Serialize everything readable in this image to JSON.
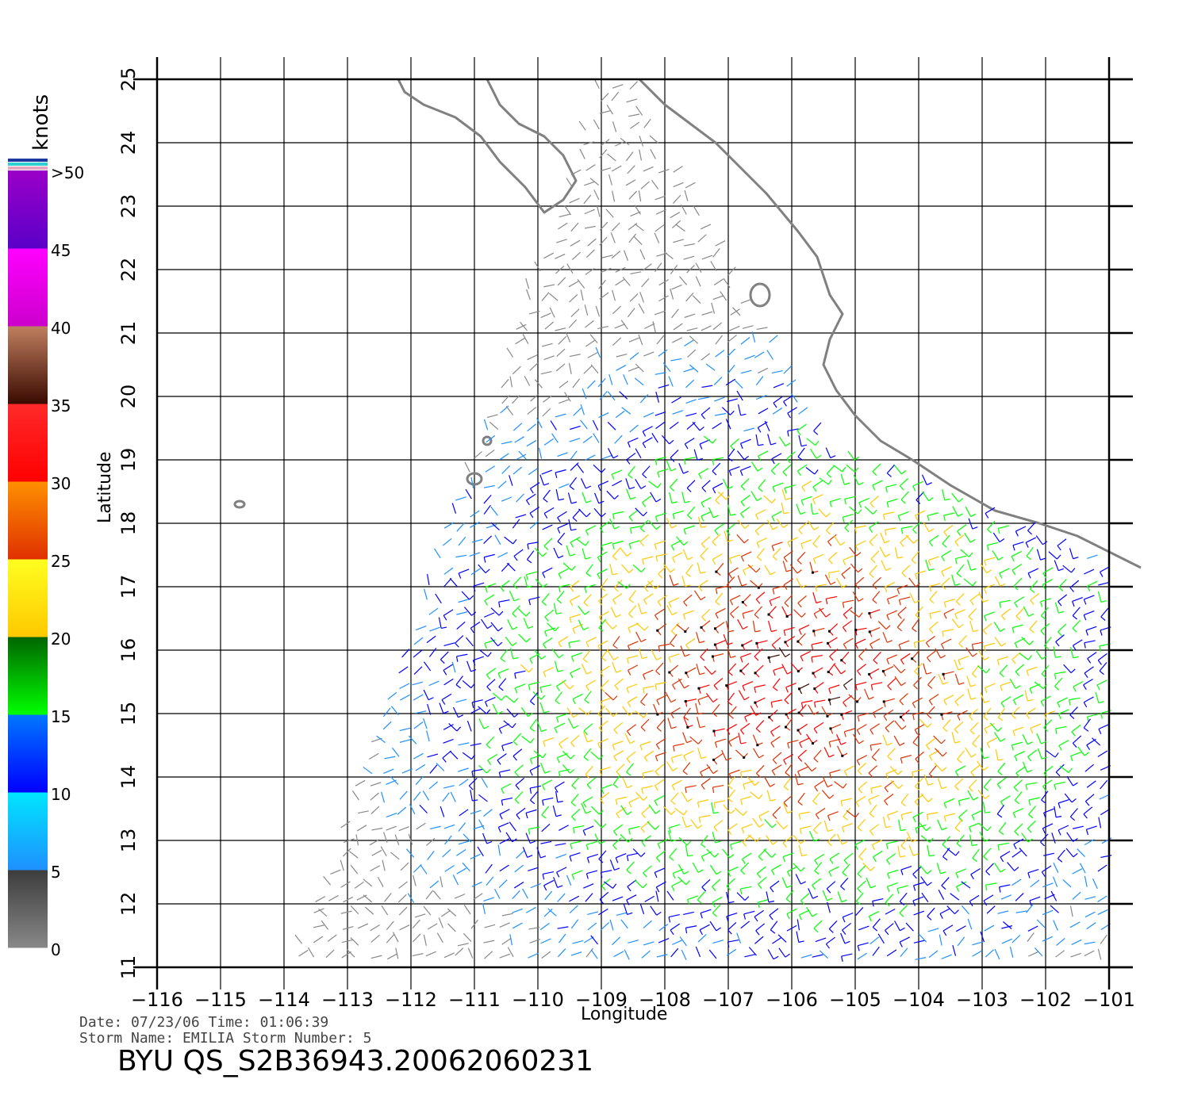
{
  "map": {
    "xlabel": "Longitude",
    "ylabel": "Latitude",
    "lon_range": [
      -116,
      -100.5
    ],
    "lat_range": [
      11,
      25
    ],
    "lon_ticks": [
      "−116",
      "−115",
      "−114",
      "−113",
      "−112",
      "−111",
      "−110",
      "−109",
      "−108",
      "−107",
      "−106",
      "−105",
      "−104",
      "−103",
      "−102",
      "−101"
    ],
    "lat_ticks": [
      "11",
      "12",
      "13",
      "14",
      "15",
      "16",
      "17",
      "18",
      "19",
      "20",
      "21",
      "22",
      "23",
      "24",
      "25"
    ],
    "coast_color": "#808080"
  },
  "colorbar": {
    "unit": "knots",
    "labels": [
      "0",
      "5",
      "10",
      "15",
      "20",
      "25",
      "30",
      "35",
      "40",
      "45",
      ">50"
    ],
    "ranges": [
      {
        "from": 0,
        "to": 5,
        "top": "#3c3c3c",
        "bottom": "#888888"
      },
      {
        "from": 5,
        "to": 10,
        "top": "#00e6ff",
        "bottom": "#1e90ff"
      },
      {
        "from": 10,
        "to": 15,
        "top": "#0078ff",
        "bottom": "#0000ff"
      },
      {
        "from": 15,
        "to": 20,
        "top": "#006400",
        "bottom": "#00ff00"
      },
      {
        "from": 20,
        "to": 25,
        "top": "#ffff20",
        "bottom": "#ffc800"
      },
      {
        "from": 25,
        "to": 30,
        "top": "#ff9000",
        "bottom": "#e03000"
      },
      {
        "from": 30,
        "to": 35,
        "top": "#ff2a2a",
        "bottom": "#ff0000"
      },
      {
        "from": 35,
        "to": 40,
        "top": "#c08060",
        "bottom": "#3a0a00"
      },
      {
        "from": 40,
        "to": 45,
        "top": "#ff00ff",
        "bottom": "#cc00cc"
      },
      {
        "from": 45,
        "to": 50,
        "top": "#9a00c8",
        "bottom": "#5a00c8"
      }
    ]
  },
  "footer": {
    "meta_line1": "Date: 07/23/06   Time: 01:06:39",
    "meta_line2": "Storm Name: EMILIA   Storm Number: 5",
    "file_id": "BYU  QS_S2B36943.20062060231"
  }
}
